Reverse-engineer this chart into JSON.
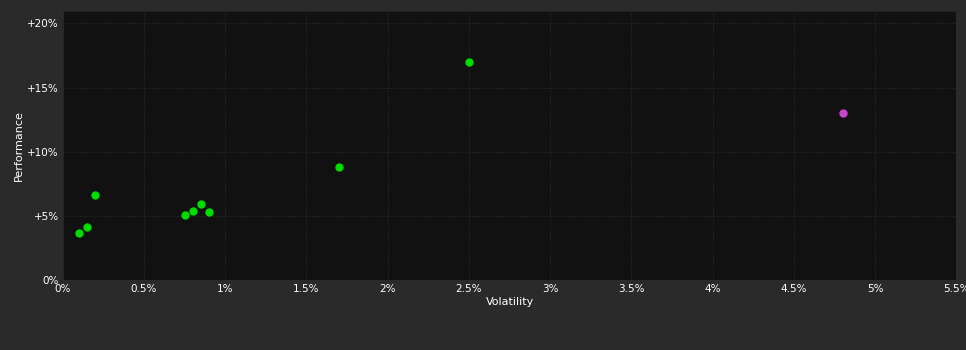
{
  "background_color": "#2a2a2a",
  "plot_bg_color": "#111111",
  "grid_color": "#3a3a3a",
  "text_color": "#ffffff",
  "green_points": [
    [
      0.001,
      0.037
    ],
    [
      0.0015,
      0.041
    ],
    [
      0.002,
      0.066
    ],
    [
      0.0075,
      0.051
    ],
    [
      0.008,
      0.054
    ],
    [
      0.0085,
      0.059
    ],
    [
      0.009,
      0.053
    ],
    [
      0.017,
      0.088
    ],
    [
      0.025,
      0.17
    ]
  ],
  "magenta_points": [
    [
      0.048,
      0.13
    ]
  ],
  "green_color": "#00dd00",
  "magenta_color": "#cc44cc",
  "xlabel": "Volatility",
  "ylabel": "Performance",
  "xlim": [
    0,
    0.055
  ],
  "ylim": [
    0,
    0.21
  ],
  "xtick_values": [
    0,
    0.005,
    0.01,
    0.015,
    0.02,
    0.025,
    0.03,
    0.035,
    0.04,
    0.045,
    0.05,
    0.055
  ],
  "ytick_values": [
    0,
    0.05,
    0.1,
    0.15,
    0.2
  ],
  "marker_size": 5
}
